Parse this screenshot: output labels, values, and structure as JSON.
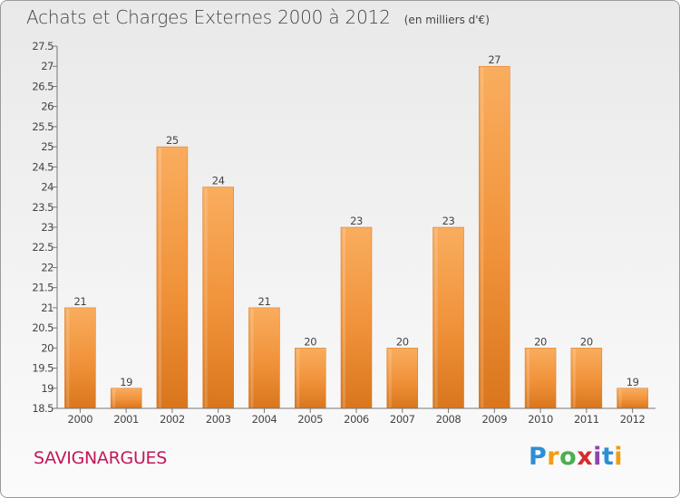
{
  "title": "Achats et Charges Externes 2000 à 2012",
  "unit": "(en milliers d'€)",
  "town": "SAVIGNARGUES",
  "logo": {
    "text": "Proxiti",
    "letters": [
      "P",
      "r",
      "o",
      "x",
      "i",
      "t",
      "i"
    ],
    "colors": [
      "#2c8fd6",
      "#f39c12",
      "#4caf50",
      "#d32f2f",
      "#8e44ad",
      "#2c8fd6",
      "#f39c12"
    ]
  },
  "colors": {
    "bar": "#f0923a",
    "bar_light": "#f9ad5e",
    "bar_dark": "#d9761d",
    "town": "#c2185b"
  },
  "chart_data": {
    "type": "bar",
    "categories": [
      "2000",
      "2001",
      "2002",
      "2003",
      "2004",
      "2005",
      "2006",
      "2007",
      "2008",
      "2009",
      "2010",
      "2011",
      "2012"
    ],
    "values": [
      21,
      19,
      25,
      24,
      21,
      20,
      23,
      20,
      23,
      27,
      20,
      20,
      19
    ],
    "value_labels": [
      "21",
      "19",
      "25",
      "24",
      "21",
      "20",
      "23",
      "20",
      "23",
      "27",
      "20",
      "20",
      "19"
    ],
    "ylim": [
      18.5,
      27.5
    ],
    "yticks": [
      18.5,
      19,
      19.5,
      20,
      20.5,
      21,
      21.5,
      22,
      22.5,
      23,
      23.5,
      24,
      24.5,
      25,
      25.5,
      26,
      26.5,
      27,
      27.5
    ],
    "ytick_labels": [
      "18.5",
      "19",
      "19.5",
      "20",
      "20.5",
      "21",
      "21.5",
      "22",
      "22.5",
      "23",
      "23.5",
      "24",
      "24.5",
      "25",
      "25.5",
      "26",
      "26.5",
      "27",
      "27.5"
    ],
    "grid": false,
    "title": "Achats et Charges Externes 2000 à 2012",
    "xlabel": "",
    "ylabel": ""
  }
}
